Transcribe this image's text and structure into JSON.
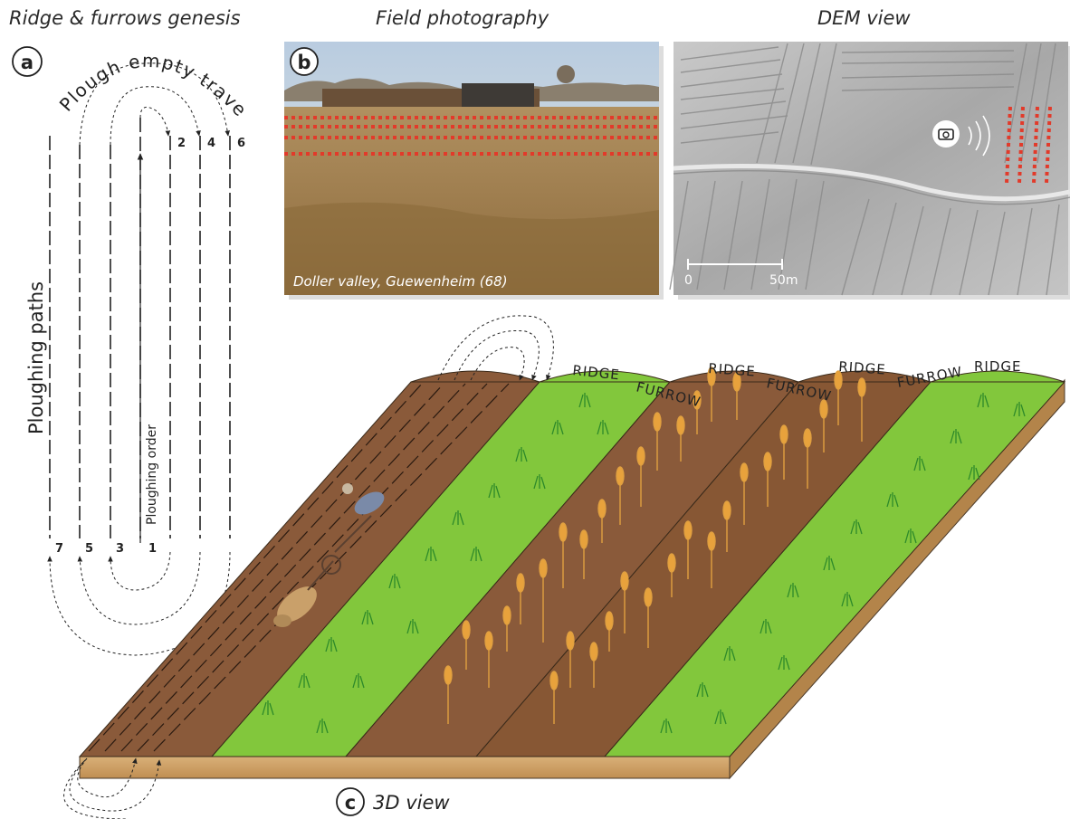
{
  "headers": {
    "panel_a": "Ridge & furrows genesis",
    "panel_b": "Field photography",
    "panel_dem": "DEM view"
  },
  "panel_letters": {
    "a": "a",
    "b": "b",
    "c": "c"
  },
  "ploughing": {
    "empty_travel": "Plough empty travel",
    "paths_label": "Ploughing paths",
    "order_label": "Ploughing order",
    "path_numbers_top": [
      "2",
      "4",
      "6"
    ],
    "path_numbers_bottom": [
      "7",
      "5",
      "3",
      "1"
    ]
  },
  "photo": {
    "caption": "Doller valley, Guewenheim (68)"
  },
  "dem": {
    "scale_start": "0",
    "scale_end": "50m"
  },
  "block": {
    "ridge_labels": [
      "RIDGE",
      "RIDGE",
      "RIDGE",
      "RIDGE"
    ],
    "furrow_labels": [
      "FURROW",
      "FURROW",
      "FURROW"
    ],
    "view_label": "3D view"
  },
  "colors": {
    "soil": "#8a5a3a",
    "soil_dark": "#6e4428",
    "grass": "#7cc23a",
    "grass_blade": "#2e8a2a",
    "wheat": "#e8a23c",
    "marker": "#e23a2a",
    "base": "#d2a56a"
  }
}
